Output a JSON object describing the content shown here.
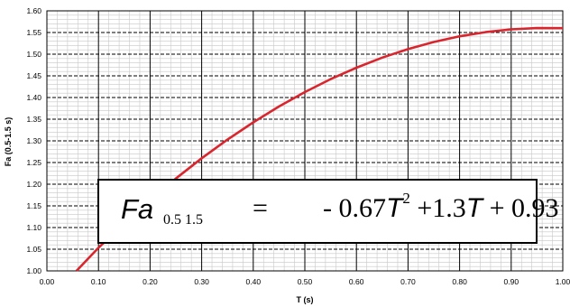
{
  "chart_data": {
    "type": "line",
    "xlabel": "T (s)",
    "ylabel": "Fa (0.5-1.5 s)",
    "xlim": [
      0.0,
      1.0
    ],
    "ylim": [
      1.0,
      1.6
    ],
    "x_ticks": [
      "0.00",
      "0.10",
      "0.20",
      "0.30",
      "0.40",
      "0.50",
      "0.60",
      "0.70",
      "0.80",
      "0.90",
      "1.00"
    ],
    "y_ticks": [
      "1.00",
      "1.05",
      "1.10",
      "1.15",
      "1.20",
      "1.25",
      "1.30",
      "1.35",
      "1.40",
      "1.45",
      "1.50",
      "1.55",
      "1.60"
    ],
    "grid": true,
    "series": [
      {
        "color": "#d9262e",
        "x": [
          0.0574,
          0.1,
          0.15,
          0.2,
          0.25,
          0.3,
          0.35,
          0.4,
          0.45,
          0.5,
          0.55,
          0.6,
          0.65,
          0.7,
          0.75,
          0.8,
          0.85,
          0.9,
          0.95,
          1.0
        ],
        "y": [
          1.0,
          1.0533,
          1.1099,
          1.1632,
          1.2131,
          1.2597,
          1.3029,
          1.3428,
          1.3794,
          1.4125,
          1.4424,
          1.4688,
          1.492,
          1.5117,
          1.5281,
          1.5412,
          1.5509,
          1.5573,
          1.5603,
          1.56
        ]
      }
    ],
    "equation": {
      "lhs": "Fa",
      "lhs_sub": "0.5  1.5",
      "equals": "=",
      "rhs_a": "- 0.67",
      "rhs_var": "T",
      "rhs_exp": "2",
      "rhs_b": " +1.3",
      "rhs_c": " + 0.93"
    }
  }
}
